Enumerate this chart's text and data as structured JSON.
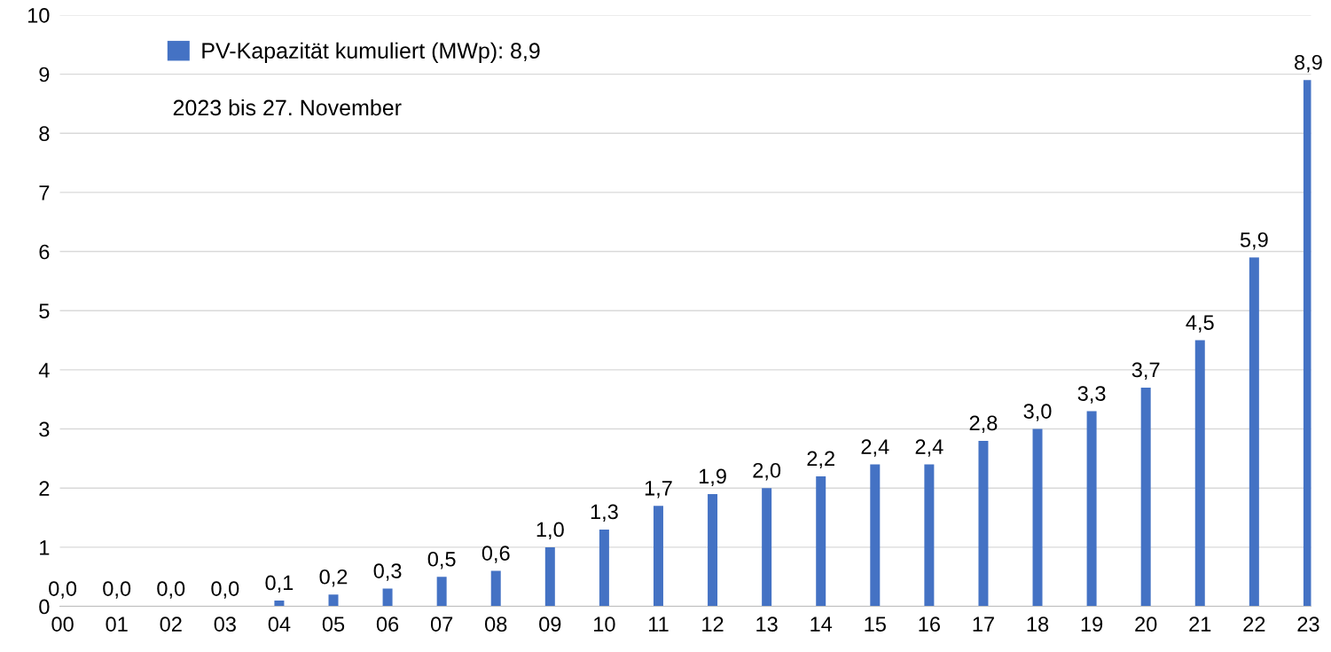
{
  "chart_data": {
    "type": "bar",
    "categories": [
      "00",
      "01",
      "02",
      "03",
      "04",
      "05",
      "06",
      "07",
      "08",
      "09",
      "10",
      "11",
      "12",
      "13",
      "14",
      "15",
      "16",
      "17",
      "18",
      "19",
      "20",
      "21",
      "22",
      "23"
    ],
    "series": [
      {
        "name": "PV-Kapazität kumuliert (MWp): 8,9",
        "color": "#4472c4",
        "values": [
          0.0,
          0.0,
          0.0,
          0.0,
          0.1,
          0.2,
          0.3,
          0.5,
          0.6,
          1.0,
          1.3,
          1.7,
          1.9,
          2.0,
          2.2,
          2.4,
          2.4,
          2.8,
          3.0,
          3.3,
          3.7,
          4.5,
          5.9,
          8.9
        ],
        "value_labels": [
          "0,0",
          "0,0",
          "0,0",
          "0,0",
          "0,1",
          "0,2",
          "0,3",
          "0,5",
          "0,6",
          "1,0",
          "1,3",
          "1,7",
          "1,9",
          "2,0",
          "2,2",
          "2,4",
          "2,4",
          "2,8",
          "3,0",
          "3,3",
          "3,7",
          "4,5",
          "5,9",
          "8,9"
        ]
      }
    ],
    "annotations": [
      "2023 bis 27. November"
    ],
    "ylim": [
      0,
      10
    ],
    "yticks": [
      0,
      1,
      2,
      3,
      4,
      5,
      6,
      7,
      8,
      9,
      10
    ],
    "grid": "y",
    "legend": "top left"
  }
}
